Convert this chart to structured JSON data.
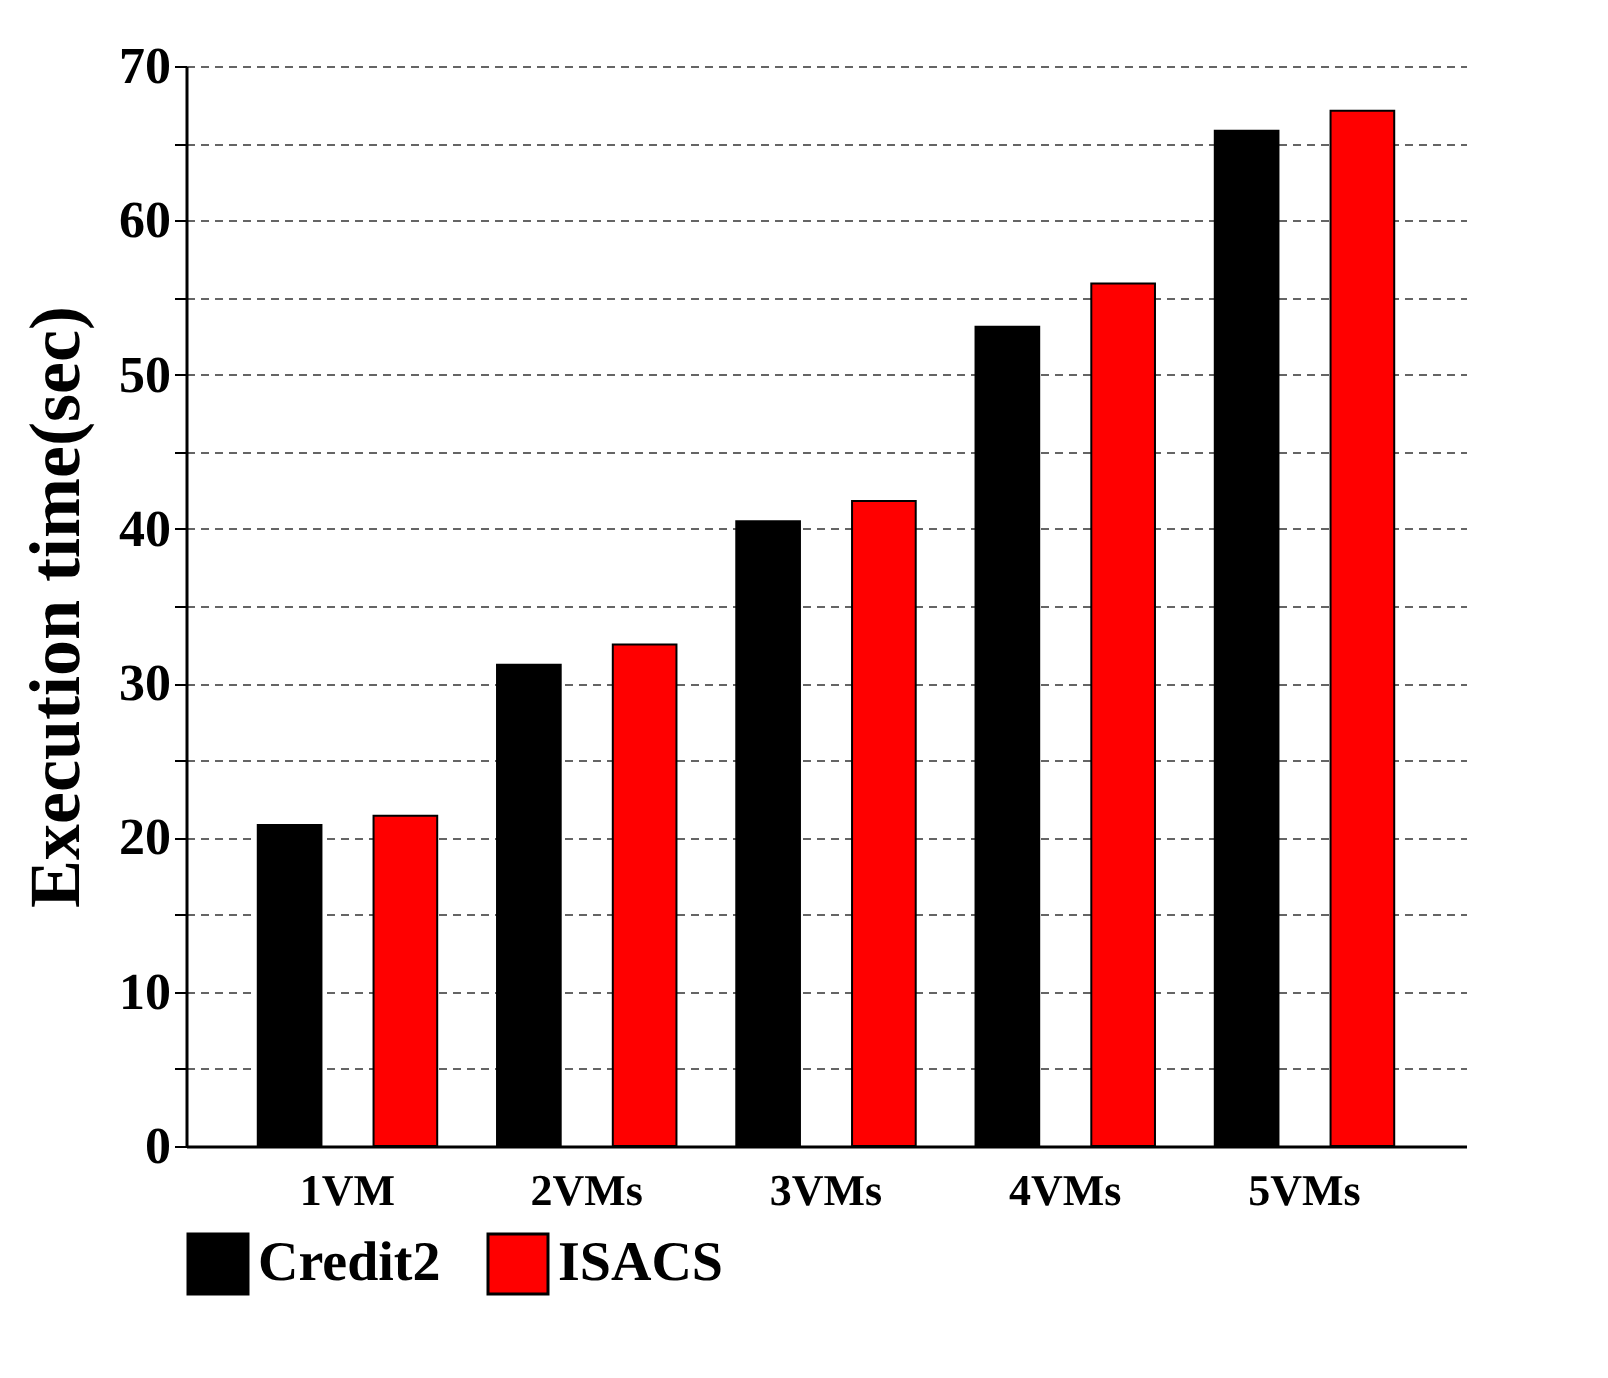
{
  "chart_data": {
    "type": "bar",
    "ylabel": "Execution time(sec)",
    "categories": [
      "1VM",
      "2VMs",
      "3VMs",
      "4VMs",
      "5VMs"
    ],
    "series": [
      {
        "name": "Credit2",
        "color": "#000000",
        "values": [
          20.8,
          31.2,
          40.5,
          53.1,
          65.8
        ]
      },
      {
        "name": "ISACS",
        "color": "#ff0000",
        "values": [
          21.4,
          32.5,
          41.8,
          55.9,
          67.1
        ]
      }
    ],
    "ylim": [
      0,
      70
    ],
    "yticks": [
      0,
      {
        "value": 5,
        "label": null
      },
      10,
      {
        "value": 15,
        "label": null
      },
      20,
      {
        "value": 25,
        "label": null
      },
      30,
      {
        "value": 35,
        "label": null
      },
      40,
      {
        "value": 45,
        "label": null
      },
      50,
      {
        "value": 55,
        "label": null
      },
      60,
      {
        "value": 65,
        "label": null
      },
      70
    ],
    "grid": "y",
    "legend": "bottom"
  }
}
